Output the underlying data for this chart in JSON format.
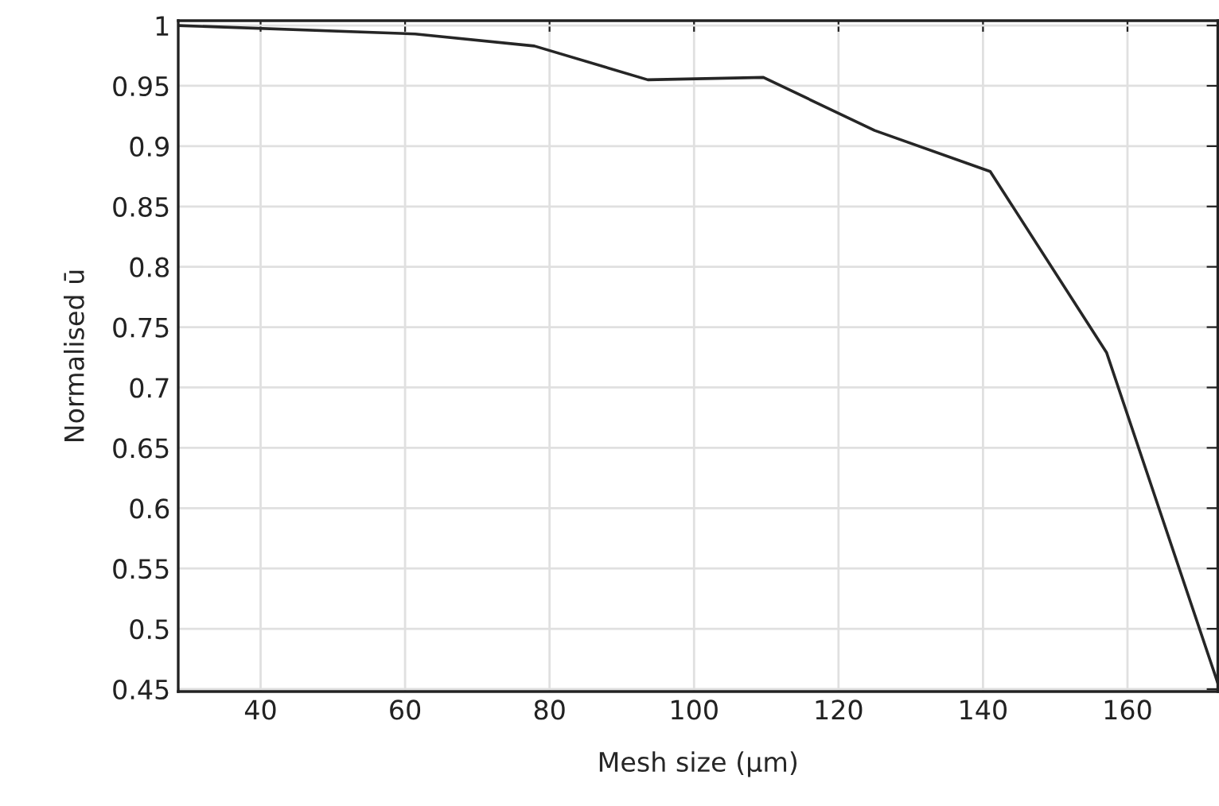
{
  "chart_data": {
    "type": "line",
    "xlabel": "Mesh size (µm)",
    "ylabel": "Normalised ū",
    "x": [
      28.6,
      61.4,
      77.9,
      93.6,
      109.6,
      125,
      141,
      157.1,
      172.5
    ],
    "series": [
      {
        "color": "#262626",
        "values": [
          1.0,
          0.993,
          0.983,
          0.955,
          0.957,
          0.913,
          0.879,
          0.729,
          0.455
        ]
      }
    ],
    "xlim": [
      28.6,
      172.5
    ],
    "ylim": [
      0.448,
      1.004
    ],
    "xticks": [
      40,
      60,
      80,
      100,
      120,
      140,
      160
    ],
    "yticks": [
      0.45,
      0.5,
      0.55,
      0.6,
      0.65,
      0.7,
      0.75,
      0.8,
      0.85,
      0.9,
      0.95,
      1
    ],
    "grid": true,
    "marker": "none",
    "line_style": "solid"
  }
}
